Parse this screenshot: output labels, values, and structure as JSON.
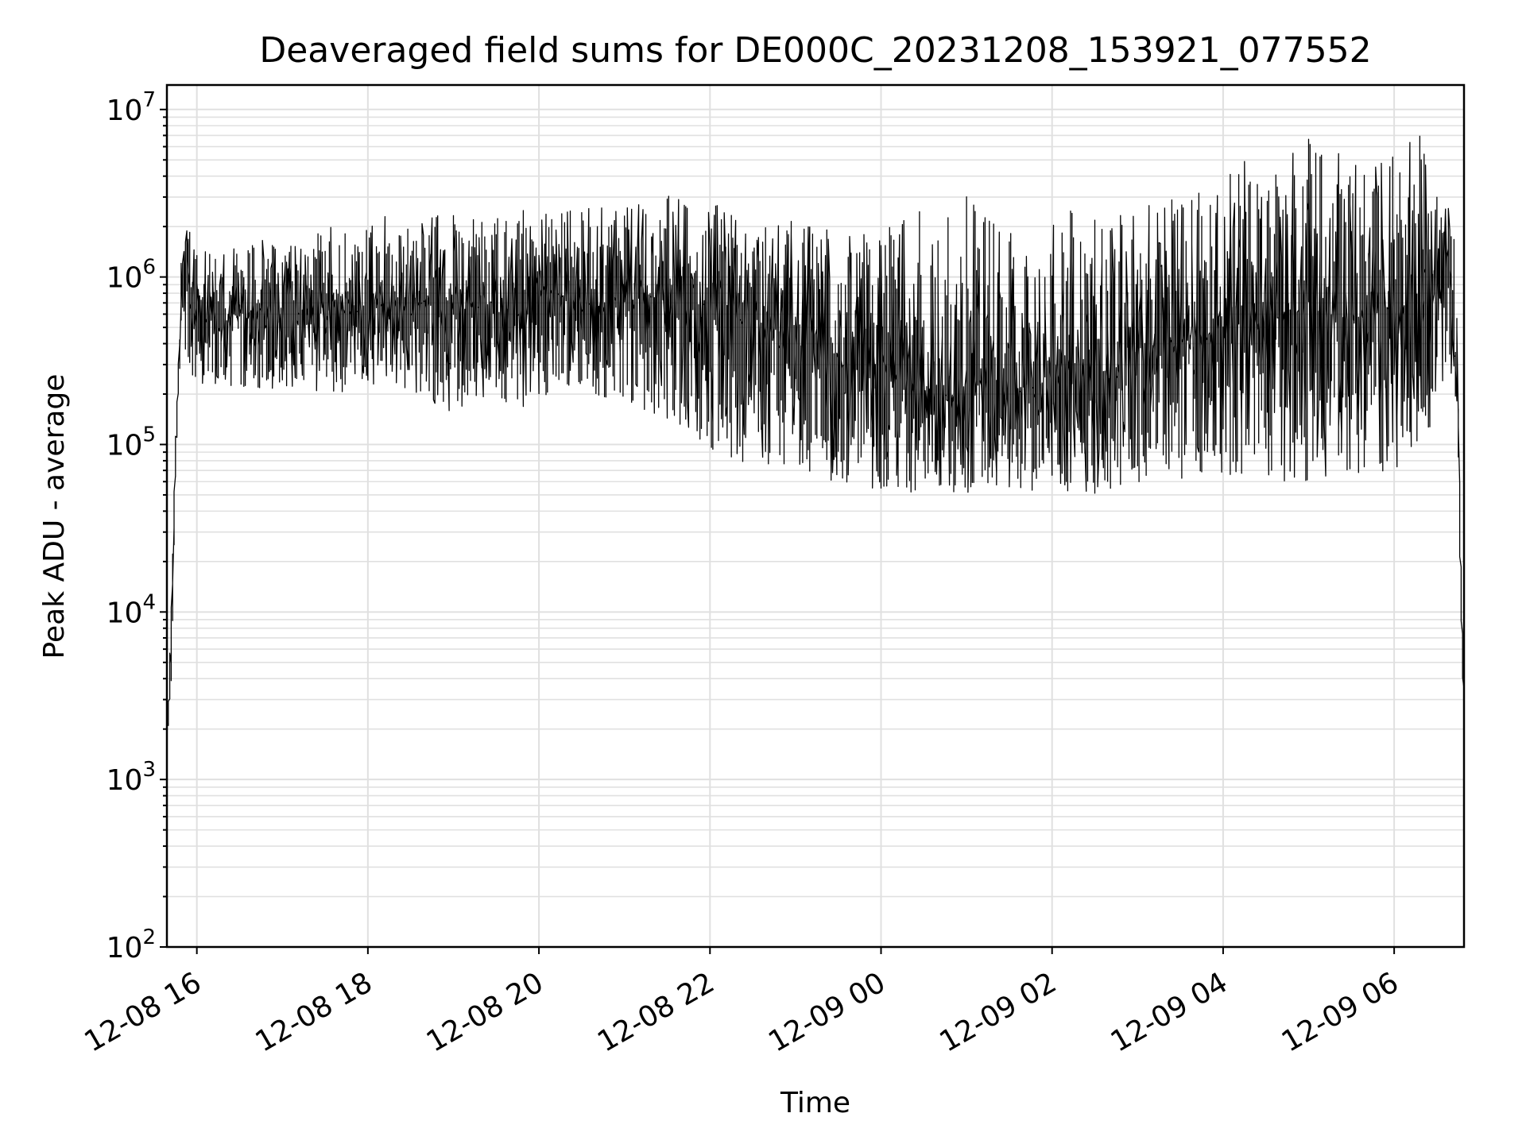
{
  "chart_data": {
    "type": "line",
    "title": "Deaveraged field sums for DE000C_20231208_153921_077552",
    "xlabel": "Time",
    "ylabel": "Peak ADU - average",
    "y_scale": "log",
    "ylim": [
      100,
      14000000
    ],
    "xlim": [
      "2023-12-08 15:39",
      "2023-12-09 06:49"
    ],
    "grid": true,
    "line_color": "#000000",
    "grid_color": "#e0e0e0",
    "x_ticks": [
      {
        "value": "2023-12-08 16:00",
        "label": "12-08 16"
      },
      {
        "value": "2023-12-08 18:00",
        "label": "12-08 18"
      },
      {
        "value": "2023-12-08 20:00",
        "label": "12-08 20"
      },
      {
        "value": "2023-12-08 22:00",
        "label": "12-08 22"
      },
      {
        "value": "2023-12-09 00:00",
        "label": "12-09 00"
      },
      {
        "value": "2023-12-09 02:00",
        "label": "12-09 02"
      },
      {
        "value": "2023-12-09 04:00",
        "label": "12-09 04"
      },
      {
        "value": "2023-12-09 06:00",
        "label": "12-09 06"
      }
    ],
    "y_ticks": [
      {
        "value": 100,
        "base": "10",
        "exp": "2"
      },
      {
        "value": 1000,
        "base": "10",
        "exp": "3"
      },
      {
        "value": 10000,
        "base": "10",
        "exp": "4"
      },
      {
        "value": 100000,
        "base": "10",
        "exp": "5"
      },
      {
        "value": 1000000,
        "base": "10",
        "exp": "6"
      },
      {
        "value": 10000000,
        "base": "10",
        "exp": "7"
      }
    ],
    "series": [
      {
        "x": [
          "2023-12-08 15:39",
          "2023-12-08 15:41",
          "2023-12-08 15:43",
          "2023-12-08 15:45",
          "2023-12-08 15:47",
          "2023-12-08 15:50",
          "2023-12-08 15:53",
          "2023-12-08 15:56",
          "2023-12-08 16:05",
          "2023-12-08 16:15",
          "2023-12-08 16:30",
          "2023-12-08 16:45",
          "2023-12-08 17:00",
          "2023-12-08 17:15",
          "2023-12-08 17:30",
          "2023-12-08 17:45",
          "2023-12-08 18:00",
          "2023-12-08 18:15",
          "2023-12-08 18:30",
          "2023-12-08 18:45",
          "2023-12-08 19:00",
          "2023-12-08 19:15",
          "2023-12-08 19:30",
          "2023-12-08 19:45",
          "2023-12-08 20:00",
          "2023-12-08 20:15",
          "2023-12-08 20:30",
          "2023-12-08 20:45",
          "2023-12-08 21:00",
          "2023-12-08 21:15",
          "2023-12-08 21:30",
          "2023-12-08 21:45",
          "2023-12-08 22:00",
          "2023-12-08 22:15",
          "2023-12-08 22:30",
          "2023-12-08 22:45",
          "2023-12-08 23:00",
          "2023-12-08 23:15",
          "2023-12-08 23:30",
          "2023-12-08 23:45",
          "2023-12-09 00:00",
          "2023-12-09 00:15",
          "2023-12-09 00:30",
          "2023-12-09 00:45",
          "2023-12-09 01:00",
          "2023-12-09 01:15",
          "2023-12-09 01:30",
          "2023-12-09 01:45",
          "2023-12-09 02:00",
          "2023-12-09 02:15",
          "2023-12-09 02:30",
          "2023-12-09 02:45",
          "2023-12-09 03:00",
          "2023-12-09 03:15",
          "2023-12-09 03:30",
          "2023-12-09 03:45",
          "2023-12-09 04:00",
          "2023-12-09 04:15",
          "2023-12-09 04:30",
          "2023-12-09 04:45",
          "2023-12-09 05:00",
          "2023-12-09 05:15",
          "2023-12-09 05:30",
          "2023-12-09 05:45",
          "2023-12-09 06:00",
          "2023-12-09 06:15",
          "2023-12-09 06:30",
          "2023-12-09 06:40",
          "2023-12-09 06:45",
          "2023-12-09 06:48",
          "2023-12-09 06:49"
        ],
        "values": [
          1500,
          3000,
          12000,
          60000,
          200000,
          900000,
          1500000,
          700000,
          600000,
          550000,
          600000,
          650000,
          550000,
          600000,
          700000,
          600000,
          650000,
          700000,
          600000,
          800000,
          700000,
          650000,
          700000,
          600000,
          750000,
          800000,
          700000,
          650000,
          750000,
          800000,
          700000,
          650000,
          700000,
          600000,
          550000,
          500000,
          400000,
          350000,
          300000,
          280000,
          300000,
          250000,
          220000,
          200000,
          200000,
          250000,
          220000,
          210000,
          250000,
          280000,
          220000,
          260000,
          300000,
          350000,
          400000,
          450000,
          500000,
          550000,
          600000,
          550000,
          650000,
          600000,
          550000,
          600000,
          650000,
          700000,
          800000,
          900000,
          200000,
          8000,
          3500
        ],
        "lower": [
          1500,
          2500,
          3000,
          50000,
          180000,
          400000,
          350000,
          250000,
          220000,
          200000,
          220000,
          210000,
          220000,
          200000,
          210000,
          200000,
          220000,
          230000,
          200000,
          180000,
          150000,
          180000,
          200000,
          160000,
          170000,
          220000,
          200000,
          190000,
          180000,
          160000,
          140000,
          110000,
          90000,
          80000,
          75000,
          70000,
          65000,
          60000,
          55000,
          52000,
          50000,
          50000,
          48000,
          48000,
          50000,
          55000,
          55000,
          50000,
          52000,
          52000,
          50000,
          48000,
          55000,
          60000,
          60000,
          65000,
          65000,
          60000,
          65000,
          60000,
          60000,
          62000,
          65000,
          62000,
          70000,
          75000,
          150000,
          300000,
          150000,
          8000,
          3500
        ],
        "upper": [
          1500,
          3200,
          15000,
          65000,
          220000,
          1500000,
          1900000,
          2000000,
          1800000,
          1500000,
          1600000,
          1700000,
          1500000,
          1700000,
          2200000,
          1800000,
          2000000,
          2400000,
          2000000,
          2300000,
          2400000,
          2200000,
          2600000,
          2500000,
          2500000,
          2700000,
          2500000,
          2800000,
          2900000,
          2700000,
          3500000,
          2600000,
          2900000,
          2500000,
          2000000,
          2100000,
          2200000,
          2100000,
          1900000,
          1800000,
          2000000,
          2300000,
          2800000,
          2400000,
          3900000,
          2200000,
          2000000,
          2000000,
          2200000,
          3000000,
          2600000,
          2500000,
          2600000,
          2800000,
          3000000,
          3500000,
          3800000,
          5500000,
          4000000,
          5000000,
          8000000,
          6000000,
          5500000,
          6000000,
          6500000,
          8500000,
          4000000,
          2500000,
          1200000,
          8000,
          3500
        ]
      }
    ]
  }
}
